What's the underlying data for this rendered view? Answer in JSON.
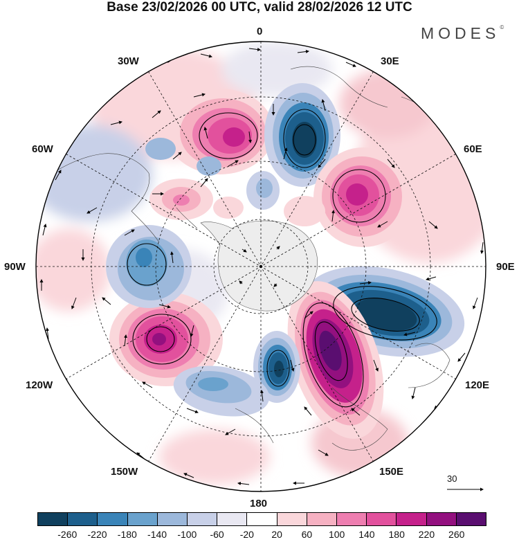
{
  "title": "Base 23/02/2026 00 UTC, valid 28/02/2026 12 UTC",
  "brand": "MODES",
  "brand_mark": "©",
  "longitude_labels": {
    "top": "0",
    "bottom": "180",
    "left": "90W",
    "right": "90E",
    "upper_left_1": "30W",
    "upper_left_2": "60W",
    "upper_right_1": "30E",
    "upper_right_2": "60E",
    "lower_left_1": "120W",
    "lower_left_2": "150W",
    "lower_right_1": "120E",
    "lower_right_2": "150E"
  },
  "reference_vector": "30",
  "colorbar": {
    "colors": [
      "#10405e",
      "#1d5f8c",
      "#3a84b8",
      "#6aa2cd",
      "#9cb8db",
      "#c8d0e8",
      "#e9e8f2",
      "#ffffff",
      "#fad7db",
      "#f6b1c2",
      "#ee7eb0",
      "#e2519d",
      "#c5218b",
      "#93107f",
      "#5a0e70"
    ],
    "ticks": [
      "-260",
      "-220",
      "-180",
      "-140",
      "-100",
      "-60",
      "-20",
      "20",
      "60",
      "100",
      "140",
      "180",
      "220",
      "260"
    ]
  },
  "anomaly_centers": [
    {
      "sign": "negative",
      "strength": 240,
      "sector": "20E"
    },
    {
      "sign": "positive",
      "strength": 180,
      "sector": "20W"
    },
    {
      "sign": "positive",
      "strength": 200,
      "sector": "55E"
    },
    {
      "sign": "negative",
      "strength": 250,
      "sector": "105E"
    },
    {
      "sign": "positive",
      "strength": 260,
      "sector": "150E"
    },
    {
      "sign": "negative",
      "strength": 200,
      "sector": "175E"
    },
    {
      "sign": "positive",
      "strength": 230,
      "sector": "120W"
    },
    {
      "sign": "negative",
      "strength": 140,
      "sector": "95W"
    }
  ]
}
